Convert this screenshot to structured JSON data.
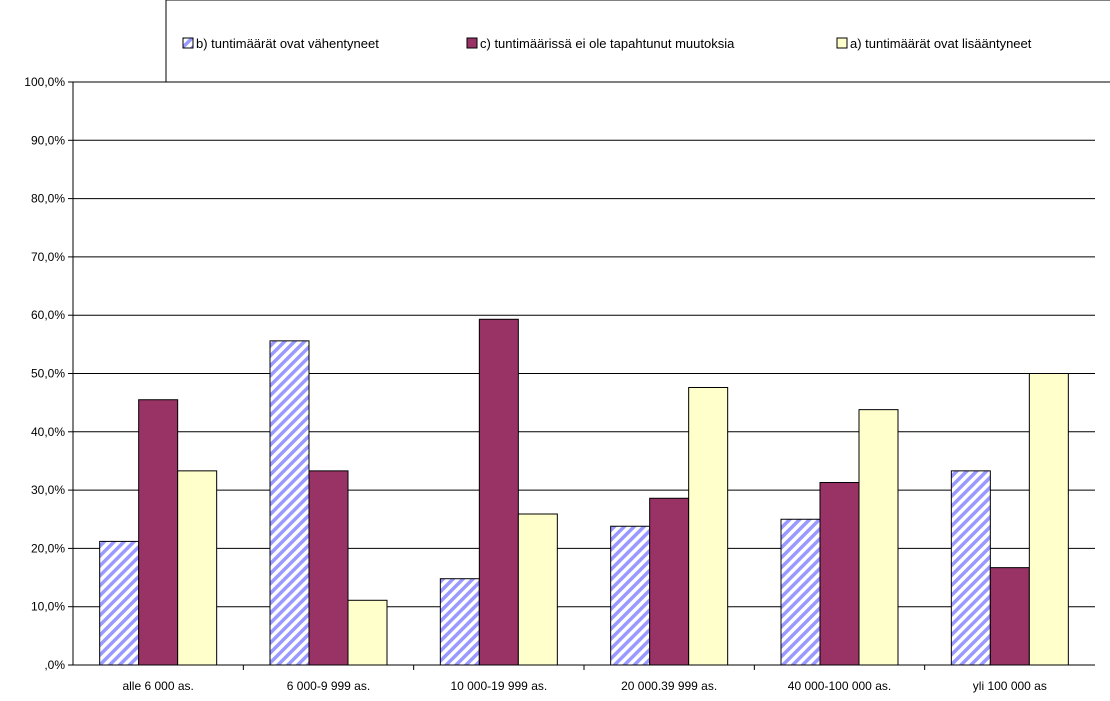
{
  "chart_data": {
    "type": "bar",
    "categories": [
      "alle 6 000 as.",
      "6 000-9 999 as.",
      "10 000-19 999 as.",
      "20 000.39 999 as.",
      "40 000-100 000 as.",
      "yli 100 000 as"
    ],
    "series": [
      {
        "name": "b) tuntimäärät ovat vähentyneet",
        "values": [
          21.2,
          55.6,
          14.8,
          23.8,
          25.0,
          33.3
        ],
        "color": "#9999ff",
        "pattern": "diagonal-hatch"
      },
      {
        "name": "c) tuntimäärissä ei ole tapahtunut muutoksia",
        "values": [
          45.5,
          33.3,
          59.3,
          28.6,
          31.3,
          16.7
        ],
        "color": "#993366",
        "pattern": "solid"
      },
      {
        "name": "a) tuntimäärät ovat lisääntyneet",
        "values": [
          33.3,
          11.1,
          25.9,
          47.6,
          43.8,
          50.0
        ],
        "color": "#ffffcc",
        "pattern": "solid"
      }
    ],
    "title": "",
    "xlabel": "",
    "ylabel": "",
    "ylim": [
      0,
      100
    ],
    "yticks": [
      ",0%",
      "10,0%",
      "20,0%",
      "30,0%",
      "40,0%",
      "50,0%",
      "60,0%",
      "70,0%",
      "80,0%",
      "90,0%",
      "100,0%"
    ],
    "grid": true,
    "legend_position": "top"
  }
}
